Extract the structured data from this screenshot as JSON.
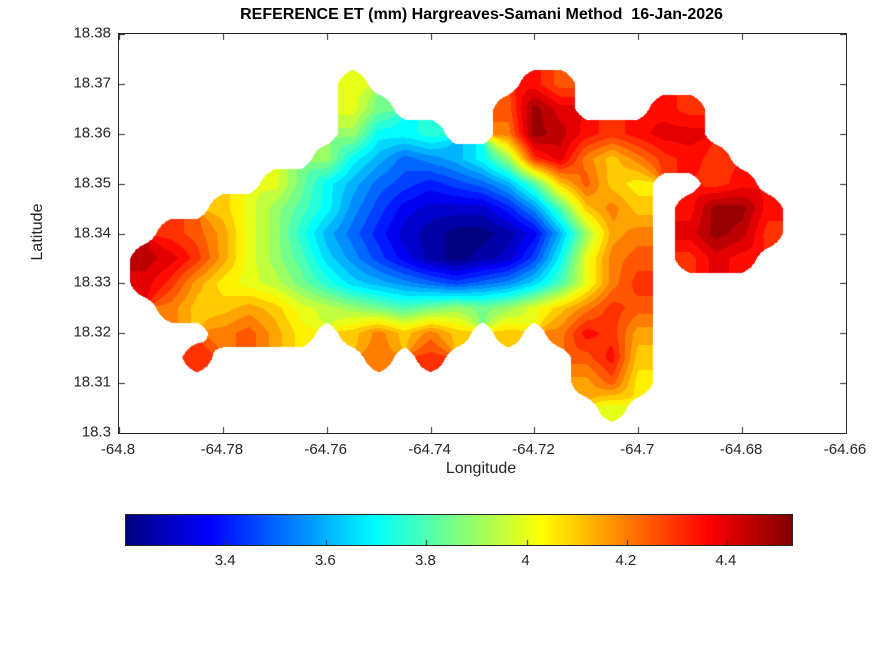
{
  "figure": {
    "background": "#ffffff"
  },
  "chart_data": {
    "type": "heatmap",
    "subtype": "filled-contour-map",
    "title": "REFERENCE ET (mm) Hargreaves-Samani Method  16-Jan-2026",
    "xlabel": "Longitude",
    "ylabel": "Latitude",
    "xlim": [
      -64.8,
      -64.66
    ],
    "ylim": [
      18.3,
      18.38
    ],
    "grid_lines": false,
    "colormap": "jet",
    "xticks": [
      {
        "value": -64.8,
        "label": "-64.8"
      },
      {
        "value": -64.78,
        "label": "-64.78"
      },
      {
        "value": -64.76,
        "label": "-64.76"
      },
      {
        "value": -64.74,
        "label": "-64.74"
      },
      {
        "value": -64.72,
        "label": "-64.72"
      },
      {
        "value": -64.7,
        "label": "-64.7"
      },
      {
        "value": -64.68,
        "label": "-64.68"
      },
      {
        "value": -64.66,
        "label": "-64.66"
      }
    ],
    "yticks": [
      {
        "value": 18.3,
        "label": "18.3"
      },
      {
        "value": 18.31,
        "label": "18.31"
      },
      {
        "value": 18.32,
        "label": "18.32"
      },
      {
        "value": 18.33,
        "label": "18.33"
      },
      {
        "value": 18.34,
        "label": "18.34"
      },
      {
        "value": 18.35,
        "label": "18.35"
      },
      {
        "value": 18.36,
        "label": "18.36"
      },
      {
        "value": 18.37,
        "label": "18.37"
      },
      {
        "value": 18.38,
        "label": "18.38"
      }
    ],
    "colorbar": {
      "orientation": "horizontal",
      "vmin": 3.2,
      "vmax": 4.53,
      "ticks": [
        {
          "value": 3.4,
          "label": "3.4"
        },
        {
          "value": 3.6,
          "label": "3.6"
        },
        {
          "value": 3.8,
          "label": "3.8"
        },
        {
          "value": 4.0,
          "label": "4"
        },
        {
          "value": 4.2,
          "label": "4.2"
        },
        {
          "value": 4.4,
          "label": "4.4"
        }
      ]
    },
    "grid": {
      "description": "Estimated reference ET (mm) on a lon/lat grid; null = outside island (St. Thomas, USVI shape). Rows top-down from lat_max.",
      "lon_min": -64.8,
      "lon_step": 0.005,
      "lat_max": 18.38,
      "lat_step": -0.005,
      "band_step": 0.05,
      "values": [
        [
          null,
          null,
          null,
          null,
          null,
          null,
          null,
          null,
          null,
          null,
          null,
          null,
          null,
          null,
          null,
          null,
          null,
          null,
          null,
          null,
          null,
          null,
          null,
          null,
          null,
          null,
          null,
          null,
          null
        ],
        [
          null,
          null,
          null,
          null,
          null,
          null,
          null,
          null,
          null,
          null,
          null,
          null,
          null,
          null,
          null,
          null,
          null,
          null,
          null,
          null,
          null,
          null,
          null,
          null,
          null,
          null,
          null,
          null,
          null
        ],
        [
          null,
          null,
          null,
          null,
          null,
          null,
          null,
          null,
          null,
          4.0,
          null,
          null,
          null,
          null,
          null,
          null,
          4.35,
          4.25,
          null,
          null,
          null,
          null,
          null,
          null,
          null,
          null,
          null,
          null,
          null
        ],
        [
          null,
          null,
          null,
          null,
          null,
          null,
          null,
          null,
          null,
          4.0,
          3.85,
          null,
          null,
          null,
          null,
          4.25,
          4.5,
          4.4,
          null,
          null,
          null,
          4.35,
          4.3,
          null,
          null,
          null,
          null,
          null,
          null
        ],
        [
          null,
          null,
          null,
          null,
          null,
          null,
          null,
          null,
          null,
          3.9,
          3.7,
          3.7,
          3.75,
          null,
          null,
          4.2,
          4.5,
          4.45,
          4.35,
          4.3,
          4.35,
          4.4,
          4.4,
          null,
          null,
          null,
          null,
          null,
          null
        ],
        [
          null,
          null,
          null,
          null,
          null,
          null,
          null,
          null,
          3.9,
          3.7,
          3.6,
          3.5,
          3.55,
          3.6,
          3.7,
          3.9,
          4.3,
          4.4,
          4.2,
          4.1,
          4.2,
          4.3,
          4.35,
          4.3,
          null,
          null,
          null,
          null,
          null
        ],
        [
          null,
          null,
          null,
          null,
          null,
          null,
          4.0,
          3.85,
          3.7,
          3.6,
          3.5,
          3.45,
          3.4,
          3.45,
          3.5,
          3.6,
          3.8,
          4.1,
          4.25,
          4.1,
          4.05,
          null,
          null,
          4.3,
          4.35,
          null,
          null,
          null,
          null
        ],
        [
          null,
          null,
          null,
          null,
          4.1,
          4.0,
          3.9,
          3.8,
          3.7,
          3.55,
          3.45,
          3.35,
          3.3,
          3.3,
          3.3,
          3.4,
          3.55,
          3.8,
          4.1,
          4.2,
          4.1,
          null,
          4.35,
          4.5,
          4.5,
          4.35,
          null,
          null,
          null
        ],
        [
          null,
          null,
          4.3,
          4.25,
          4.15,
          4.0,
          3.9,
          3.75,
          3.6,
          3.5,
          3.4,
          3.3,
          3.25,
          3.2,
          3.2,
          3.25,
          3.35,
          3.6,
          3.9,
          4.15,
          4.2,
          null,
          4.4,
          4.5,
          4.45,
          4.3,
          null,
          null,
          null
        ],
        [
          null,
          4.45,
          4.4,
          4.3,
          4.15,
          4.0,
          3.9,
          3.8,
          3.65,
          3.55,
          3.45,
          3.35,
          3.25,
          3.2,
          3.25,
          3.3,
          3.45,
          3.7,
          4.0,
          4.2,
          4.25,
          null,
          4.3,
          4.4,
          4.35,
          null,
          null,
          null,
          null
        ],
        [
          null,
          4.4,
          4.3,
          4.15,
          4.05,
          4.0,
          3.95,
          3.85,
          3.75,
          3.65,
          3.6,
          3.55,
          3.5,
          3.45,
          3.5,
          3.55,
          3.65,
          3.8,
          4.0,
          4.2,
          4.3,
          null,
          null,
          null,
          null,
          null,
          null,
          null,
          null
        ],
        [
          null,
          null,
          4.2,
          4.1,
          4.1,
          4.15,
          4.1,
          4.0,
          3.95,
          3.9,
          3.85,
          3.8,
          3.85,
          3.9,
          3.85,
          3.9,
          4.0,
          4.1,
          4.2,
          4.3,
          4.25,
          null,
          null,
          null,
          null,
          null,
          null,
          null,
          null
        ],
        [
          null,
          null,
          null,
          null,
          4.2,
          4.25,
          4.15,
          4.05,
          null,
          4.1,
          4.2,
          4.1,
          4.2,
          4.1,
          null,
          4.1,
          null,
          4.2,
          4.35,
          4.3,
          4.15,
          null,
          null,
          null,
          null,
          null,
          null,
          null,
          null
        ],
        [
          null,
          null,
          null,
          4.3,
          null,
          null,
          null,
          null,
          null,
          null,
          4.2,
          null,
          4.3,
          null,
          null,
          null,
          null,
          null,
          4.25,
          4.35,
          4.1,
          null,
          null,
          null,
          null,
          null,
          null,
          null,
          null
        ],
        [
          null,
          null,
          null,
          null,
          null,
          null,
          null,
          null,
          null,
          null,
          null,
          null,
          null,
          null,
          null,
          null,
          null,
          null,
          4.15,
          4.25,
          4.05,
          null,
          null,
          null,
          null,
          null,
          null,
          null,
          null
        ],
        [
          null,
          null,
          null,
          null,
          null,
          null,
          null,
          null,
          null,
          null,
          null,
          null,
          null,
          null,
          null,
          null,
          null,
          null,
          null,
          4.0,
          null,
          null,
          null,
          null,
          null,
          null,
          null,
          null,
          null
        ],
        [
          null,
          null,
          null,
          null,
          null,
          null,
          null,
          null,
          null,
          null,
          null,
          null,
          null,
          null,
          null,
          null,
          null,
          null,
          null,
          null,
          null,
          null,
          null,
          null,
          null,
          null,
          null,
          null,
          null
        ]
      ]
    }
  }
}
